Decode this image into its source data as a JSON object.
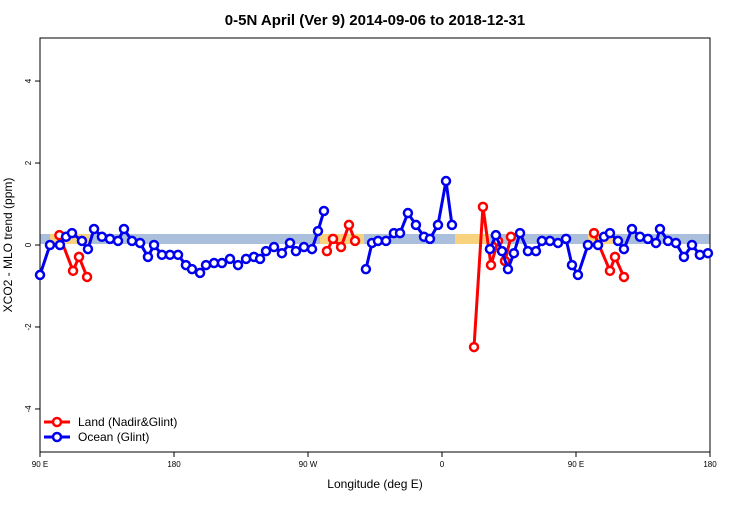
{
  "chart_data": {
    "type": "line",
    "title": "0-5N April (Ver 9)   2014-09-06 to 2018-12-31",
    "x_label": "Longitude (deg E)",
    "y_label": "XCO2 - MLO trend (ppm)",
    "xlim": [
      90,
      540
    ],
    "ylim": [
      -5.05,
      5.05
    ],
    "xticks": [
      {
        "value": 90,
        "label": "90 E"
      },
      180,
      {
        "value": 270,
        "label": "90 W"
      },
      {
        "value": 360,
        "label": "0"
      },
      {
        "value": 450,
        "label": "90 E"
      },
      {
        "value": 540,
        "label": "180"
      }
    ],
    "yticks": [
      -4,
      -2,
      0,
      2,
      4
    ],
    "legend": "bottom-left",
    "series": [
      {
        "name": "Land (Nadir&Glint)",
        "color": "#ff0000",
        "x": [
          103,
          112.2,
          116.2,
          121.6,
          null,
          282.7,
          286.8,
          292.2,
          297.5,
          301.6,
          null,
          381.5,
          387.5,
          392.9,
          397.6,
          402.3,
          406.3,
          null,
          462.1,
          472.8,
          476.2,
          482.2
        ],
        "values": [
          0.24,
          -0.63,
          -0.29,
          -0.78,
          null,
          -0.15,
          0.15,
          -0.05,
          0.49,
          0.1,
          null,
          -2.49,
          0.93,
          -0.49,
          0.1,
          -0.39,
          0.2,
          null,
          0.29,
          -0.63,
          -0.29,
          -0.78
        ]
      },
      {
        "name": "Ocean (Glint)",
        "color": "#0000ee",
        "x": [
          90,
          96.7,
          103.4,
          107.5,
          111.5,
          118.2,
          122.2,
          126.3,
          131.6,
          137,
          142.4,
          146.4,
          151.8,
          157.2,
          162.5,
          166.6,
          171.9,
          177.3,
          182.7,
          188,
          192.1,
          197.5,
          201.5,
          206.9,
          212.2,
          217.6,
          223,
          228.4,
          233.7,
          237.8,
          241.8,
          247.2,
          252.5,
          257.9,
          261.9,
          267.3,
          272.7,
          276.7,
          280.7,
          null,
          308.9,
          313,
          317,
          322.4,
          327.7,
          331.8,
          337.1,
          342.5,
          347.9,
          351.9,
          357.3,
          362.7,
          366.7,
          null,
          392.2,
          396.2,
          400.3,
          404.3,
          408.3,
          412.4,
          417.7,
          423.1,
          427.1,
          432.5,
          437.9,
          443.3,
          447.3,
          451.3,
          458,
          464.8,
          468.8,
          472.8,
          478.2,
          482.2,
          487.6,
          493,
          498.3,
          503.7,
          506.4,
          511.8,
          517.1,
          522.5,
          527.9,
          533.2,
          538.6
        ],
        "values": [
          -0.73,
          0,
          0,
          0.2,
          0.29,
          0.1,
          -0.1,
          0.39,
          0.2,
          0.15,
          0.1,
          0.39,
          0.1,
          0.05,
          -0.29,
          0,
          -0.24,
          -0.24,
          -0.24,
          -0.49,
          -0.59,
          -0.68,
          -0.49,
          -0.44,
          -0.44,
          -0.34,
          -0.49,
          -0.34,
          -0.29,
          -0.34,
          -0.15,
          -0.05,
          -0.2,
          0.05,
          -0.15,
          -0.05,
          -0.1,
          0.34,
          0.83,
          null,
          -0.59,
          0.05,
          0.1,
          0.1,
          0.29,
          0.29,
          0.78,
          0.49,
          0.2,
          0.15,
          0.49,
          1.56,
          0.49,
          null,
          -0.1,
          0.24,
          -0.15,
          -0.59,
          -0.2,
          0.29,
          -0.15,
          -0.15,
          0.1,
          0.1,
          0.05,
          0.15,
          -0.49,
          -0.73,
          0,
          0,
          0.2,
          0.29,
          0.1,
          -0.1,
          0.39,
          0.2,
          0.15,
          0.05,
          0.39,
          0.1,
          0.05,
          -0.29,
          0,
          -0.24,
          -0.2
        ]
      }
    ]
  }
}
